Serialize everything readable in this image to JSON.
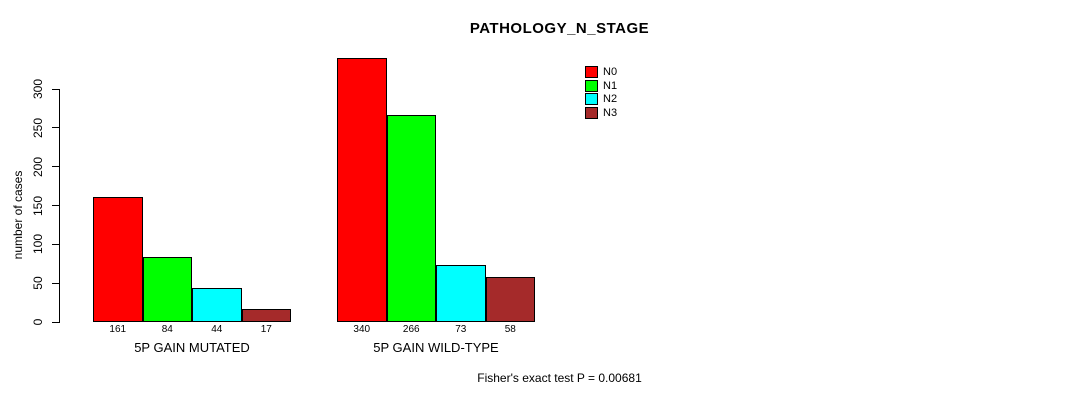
{
  "chart_data": {
    "type": "bar",
    "title": "PATHOLOGY_N_STAGE",
    "ylabel": "number of cases",
    "xlabel": "",
    "footnote": "Fisher's exact test P = 0.00681",
    "groups": [
      "5P GAIN MUTATED",
      "5P GAIN WILD-TYPE"
    ],
    "series": [
      {
        "name": "N0",
        "color": "#FF0000",
        "values": [
          161,
          340
        ]
      },
      {
        "name": "N1",
        "color": "#00FF00",
        "values": [
          84,
          266
        ]
      },
      {
        "name": "N2",
        "color": "#00FFFF",
        "values": [
          44,
          73
        ]
      },
      {
        "name": "N3",
        "color": "#A52A2A",
        "values": [
          17,
          58
        ]
      }
    ],
    "y_ticks": [
      0,
      50,
      100,
      150,
      200,
      250,
      300
    ],
    "ylim": [
      0,
      300
    ],
    "grid": false,
    "legend_position": "top-right",
    "bar_value_labels": true,
    "axis_color": "#000000",
    "background_color": "#FFFFFF"
  }
}
